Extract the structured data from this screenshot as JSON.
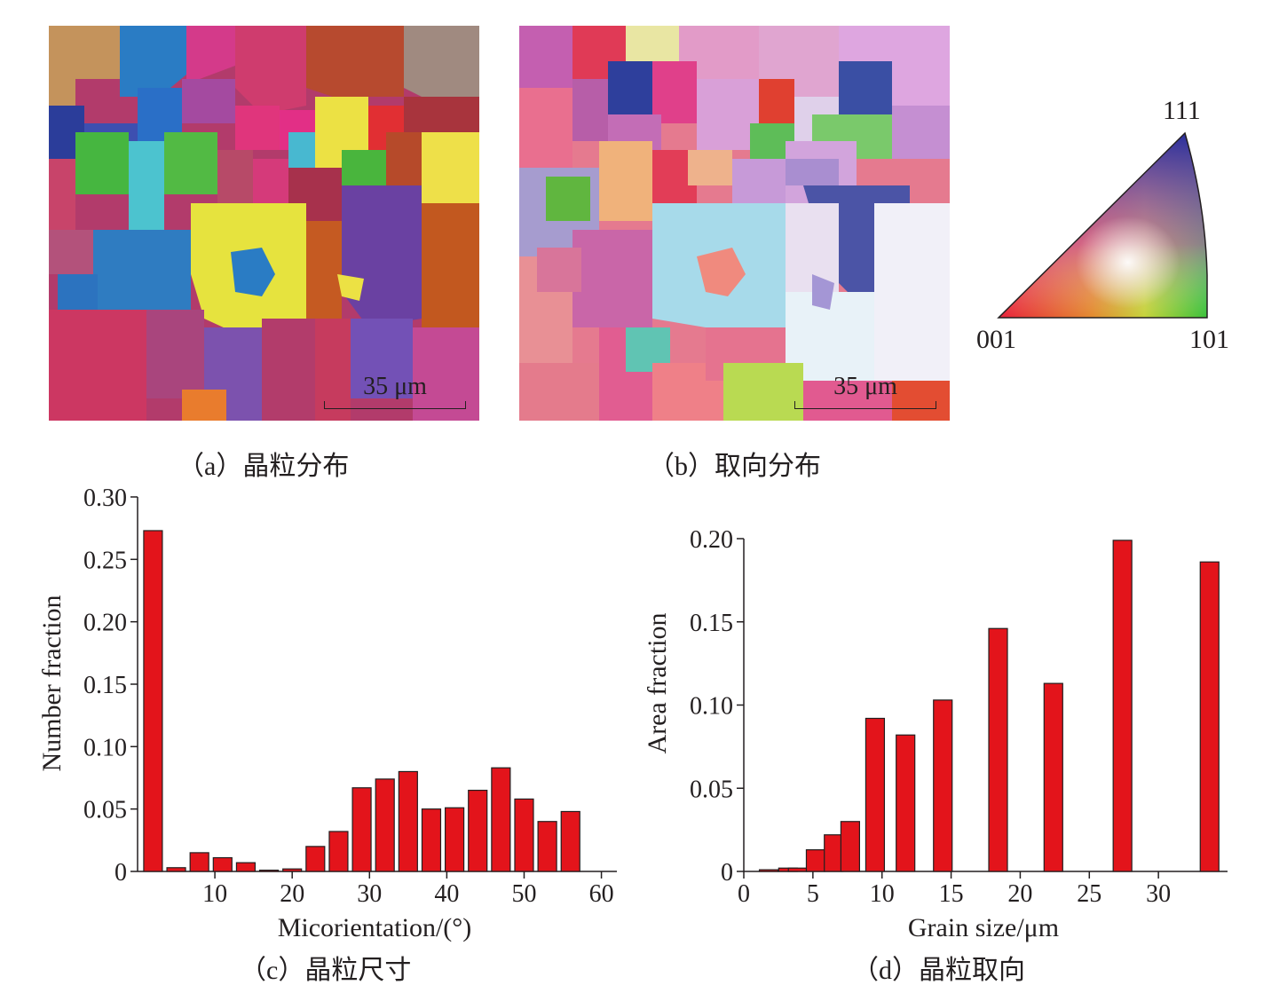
{
  "panels": {
    "a": {
      "caption": "（a）晶粒分布",
      "scale_bar": "35 μm"
    },
    "b": {
      "caption": "（b）取向分布",
      "scale_bar": "35 μm"
    },
    "c": {
      "caption": "（c）晶粒尺寸"
    },
    "d": {
      "caption": "（d）晶粒取向"
    }
  },
  "ipf_key": {
    "corner_top": "111",
    "corner_left": "001",
    "corner_right": "101",
    "colors": {
      "001": "#e8203a",
      "101": "#39c13a",
      "111": "#2a2f9c"
    }
  },
  "bar_color": "#e3141b",
  "chart_data": [
    {
      "type": "bar",
      "panel": "c",
      "xlabel": "Micorientation/(°)",
      "ylabel": "Number fraction",
      "xlim": [
        0,
        62
      ],
      "ylim": [
        0,
        0.3
      ],
      "xticks": [
        10,
        20,
        30,
        40,
        50,
        60
      ],
      "yticks": [
        0,
        0.05,
        0.1,
        0.15,
        0.2,
        0.25,
        0.3
      ],
      "ytick_labels": [
        "0",
        "0.05",
        "0.10",
        "0.15",
        "0.20",
        "0.25",
        "0.30"
      ],
      "x": [
        2,
        5,
        8,
        11,
        14,
        17,
        20,
        23,
        26,
        29,
        32,
        35,
        38,
        41,
        44,
        47,
        50,
        53,
        56,
        59
      ],
      "values": [
        0.273,
        0.003,
        0.015,
        0.011,
        0.007,
        0.001,
        0.002,
        0.02,
        0.032,
        0.067,
        0.074,
        0.08,
        0.05,
        0.051,
        0.065,
        0.083,
        0.058,
        0.04,
        0.048,
        0.0
      ]
    },
    {
      "type": "bar",
      "panel": "d",
      "xlabel": "Grain size/μm",
      "ylabel": "Area fraction",
      "xlim": [
        0,
        35
      ],
      "ylim": [
        0,
        0.2
      ],
      "xticks": [
        0,
        5,
        10,
        15,
        20,
        25,
        30
      ],
      "yticks": [
        0,
        0.05,
        0.1,
        0.15,
        0.2
      ],
      "ytick_labels": [
        "0",
        "0.05",
        "0.10",
        "0.15",
        "0.20"
      ],
      "x": [
        1.8,
        3.2,
        3.9,
        5.2,
        6.5,
        7.7,
        9.5,
        11.7,
        14.4,
        18.4,
        22.4,
        27.4,
        33.7
      ],
      "values": [
        0.001,
        0.002,
        0.002,
        0.013,
        0.022,
        0.03,
        0.092,
        0.082,
        0.103,
        0.146,
        0.113,
        0.199,
        0.186
      ]
    }
  ]
}
